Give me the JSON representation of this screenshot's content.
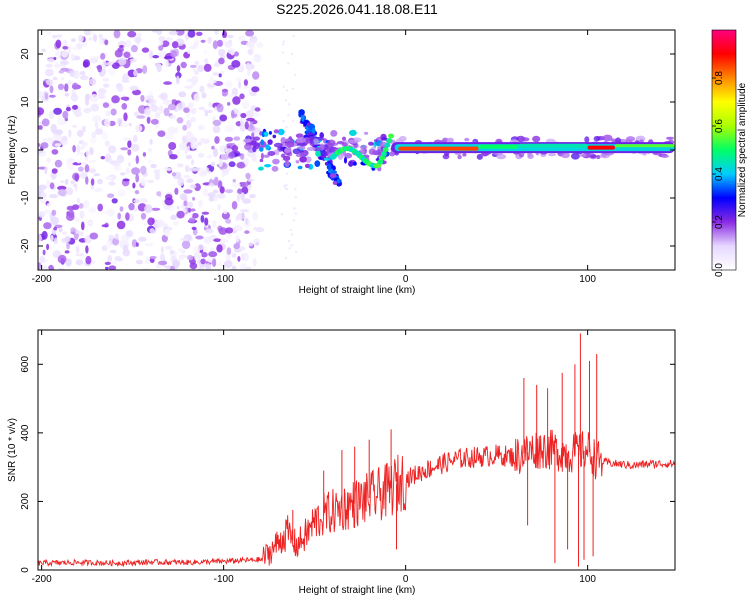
{
  "figure": {
    "title": "S225.2026.041.18.08.E11"
  },
  "chart_data": [
    {
      "type": "heatmap",
      "name": "spectrogram",
      "xlabel": "Height of straight line (km)",
      "ylabel": "Frequency (Hz)",
      "xlim": [
        -202,
        148
      ],
      "ylim": [
        -25,
        25
      ],
      "xticks": [
        -200,
        -100,
        0,
        100
      ],
      "xtick_labels": [
        "-200",
        "-100",
        "0",
        "100"
      ],
      "yticks": [
        -20,
        -10,
        0,
        10,
        20
      ],
      "ytick_labels": [
        "-20",
        "-10",
        "0",
        "10",
        "20"
      ],
      "colorbar": {
        "label": "Normalized spectral amplitude",
        "range": [
          0,
          1
        ],
        "ticks": [
          0.0,
          0.2,
          0.4,
          0.6,
          0.8
        ],
        "tick_labels": [
          "0.0",
          "0.2",
          "0.4",
          "0.6",
          "0.8"
        ],
        "colormap": [
          "#ffffff",
          "#e6d8ff",
          "#8a2be2",
          "#0000ff",
          "#00ccff",
          "#00ff66",
          "#aaff00",
          "#ffff00",
          "#ff8800",
          "#ff0000",
          "#ff0080"
        ]
      },
      "regions": [
        {
          "name": "noise",
          "x_range": [
            -202,
            -80
          ],
          "f_range": [
            -25,
            25
          ],
          "amplitude": 0.1
        },
        {
          "name": "onset",
          "x_range": [
            -80,
            -10
          ],
          "f_range": [
            -10,
            10
          ],
          "amplitude": 0.3
        },
        {
          "name": "signal-line",
          "x_range": [
            -10,
            148
          ],
          "f_center": 0.5,
          "amplitude": 0.85
        }
      ]
    },
    {
      "type": "line",
      "name": "snr",
      "xlabel": "Height of straight line (km)",
      "ylabel": "SNR (10 * v/v)",
      "xlim": [
        -202,
        148
      ],
      "ylim": [
        0,
        700
      ],
      "xticks": [
        -200,
        -100,
        0,
        100
      ],
      "xtick_labels": [
        "-200",
        "-100",
        "0",
        "100"
      ],
      "yticks": [
        0,
        200,
        400,
        600
      ],
      "ytick_labels": [
        "0",
        "200",
        "400",
        "600"
      ],
      "color": "#ee2222",
      "series": [
        {
          "name": "SNR",
          "x": [
            -202,
            -180,
            -160,
            -140,
            -120,
            -100,
            -90,
            -80,
            -75,
            -70,
            -65,
            -60,
            -55,
            -50,
            -45,
            -40,
            -35,
            -30,
            -25,
            -20,
            -15,
            -10,
            -5,
            0,
            10,
            20,
            30,
            40,
            50,
            60,
            65,
            70,
            75,
            80,
            85,
            90,
            95,
            100,
            105,
            108,
            115,
            125,
            135,
            148
          ],
          "y": [
            20,
            22,
            20,
            23,
            22,
            25,
            28,
            30,
            50,
            80,
            110,
            70,
            100,
            140,
            160,
            170,
            180,
            190,
            200,
            210,
            220,
            230,
            250,
            265,
            290,
            310,
            325,
            330,
            335,
            330,
            340,
            350,
            355,
            350,
            345,
            340,
            345,
            350,
            320,
            315,
            310,
            305,
            310,
            310
          ]
        }
      ],
      "spikes": [
        {
          "x": -62,
          "y": 175
        },
        {
          "x": -55,
          "y": 150
        },
        {
          "x": -45,
          "y": 290
        },
        {
          "x": -35,
          "y": 350
        },
        {
          "x": -28,
          "y": 360
        },
        {
          "x": -20,
          "y": 380
        },
        {
          "x": -8,
          "y": 410
        },
        {
          "x": -5,
          "y": 60
        },
        {
          "x": 65,
          "y": 560
        },
        {
          "x": 67,
          "y": 130
        },
        {
          "x": 72,
          "y": 540
        },
        {
          "x": 78,
          "y": 530
        },
        {
          "x": 82,
          "y": 20
        },
        {
          "x": 86,
          "y": 575
        },
        {
          "x": 89,
          "y": 60
        },
        {
          "x": 93,
          "y": 600
        },
        {
          "x": 95,
          "y": 10
        },
        {
          "x": 96,
          "y": 690
        },
        {
          "x": 98,
          "y": 30
        },
        {
          "x": 101,
          "y": 610
        },
        {
          "x": 103,
          "y": 40
        },
        {
          "x": 105,
          "y": 630
        }
      ]
    }
  ]
}
